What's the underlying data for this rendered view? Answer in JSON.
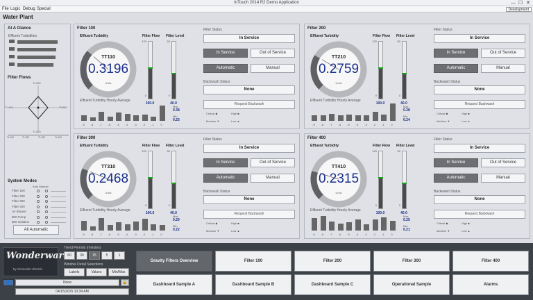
{
  "window": {
    "title": "InTouch 2014 R2 Demo Application",
    "minimize": "—",
    "maximize": "☐",
    "close": "✕"
  },
  "menu": {
    "items": [
      "File",
      "Logic",
      "Debug",
      "Special"
    ],
    "environment": "Development"
  },
  "app": {
    "title": "Water Plant"
  },
  "glance": {
    "title": "At A Glance",
    "turbidity_label": "Effluent Turbidities",
    "filters": [
      {
        "name": "100",
        "level": 0.62
      },
      {
        "name": "200",
        "level": 0.6
      },
      {
        "name": "300",
        "level": 0.58
      },
      {
        "name": "400",
        "level": 0.55
      }
    ],
    "flows_label": "Filter Flows",
    "flow_labels": {
      "top": "TI-100",
      "left": "TI-400",
      "right": "TI-200",
      "bottom": "TI-300"
    },
    "axis_labels": [
      "TI-100",
      "TI-200",
      "TI-300",
      "TI-400"
    ],
    "modes_title": "System Modes",
    "modes_header": "Auto Manual",
    "modes": [
      "Filter 100",
      "Filter 200",
      "Filter 300",
      "Filter 400",
      "Air Blower",
      "BW Pump",
      "BW Isolation"
    ],
    "all_auto": "All Automatic"
  },
  "filters": [
    {
      "title": "Filter 100",
      "tag": "TT110",
      "value": "0.3196",
      "gauge_level": 0.32,
      "flow": "100.0",
      "level": "40.0",
      "flow_fill": 0.55,
      "level_fill": 0.45,
      "hist": [
        0.32,
        0.18,
        0.5,
        0.22,
        0.45,
        0.4,
        0.3,
        0.35,
        0.25,
        0.85
      ],
      "hist_labels": [
        "-9",
        "-8",
        "-7",
        "-6",
        "-5",
        "-4",
        "-3",
        "-2",
        "-1",
        "0"
      ],
      "max": "0.38",
      "min": "0.25"
    },
    {
      "title": "Filter 200",
      "tag": "TT210",
      "value": "0.2759",
      "gauge_level": 0.28,
      "flow": "100.0",
      "level": "40.0",
      "flow_fill": 0.55,
      "level_fill": 0.45,
      "hist": [
        0.3,
        0.3,
        0.4,
        0.3,
        0.35,
        0.32,
        0.3,
        0.5,
        0.35,
        0.95
      ],
      "hist_labels": [
        "-9",
        "-8",
        "-7",
        "-6",
        "-5",
        "-4",
        "-3",
        "-2",
        "-1",
        "0"
      ],
      "max": "0.28",
      "min": "0.24"
    },
    {
      "title": "Filter 300",
      "tag": "TT310",
      "value": "0.2468",
      "gauge_level": 0.25,
      "flow": "100.0",
      "level": "40.0",
      "flow_fill": 0.55,
      "level_fill": 0.45,
      "hist": [
        0.55,
        0.25,
        0.7,
        0.3,
        0.45,
        0.35,
        0.5,
        0.65,
        0.35,
        0.3
      ],
      "hist_labels": [
        "-9",
        "-8",
        "-7",
        "-6",
        "-5",
        "-4",
        "-3",
        "-2",
        "-1",
        "0"
      ],
      "max": "0.29",
      "min": "0.22"
    },
    {
      "title": "Filter 400",
      "tag": "TT410",
      "value": "0.2315",
      "gauge_level": 0.23,
      "flow": "100.0",
      "level": "40.0",
      "flow_fill": 0.55,
      "level_fill": 0.45,
      "hist": [
        0.7,
        0.8,
        0.5,
        0.4,
        0.45,
        0.6,
        0.35,
        0.6,
        0.75,
        0.55
      ],
      "hist_labels": [
        "-9",
        "-8",
        "-7",
        "-6",
        "-5",
        "-4",
        "-3",
        "-2",
        "-1",
        "0"
      ],
      "max": "0.25",
      "min": "0.21"
    }
  ],
  "filter_labels": {
    "effluent_turbidity": "Effluent Turbidity",
    "filter_flow": "Filter Flow",
    "filter_level": "Filter Level",
    "filter_status": "Filter Status",
    "in_service_status": "In Service",
    "in_service": "In Service",
    "out_of_service": "Out of Service",
    "automatic": "Automatic",
    "manual": "Manual",
    "backwash_status": "Backwash Status",
    "backwash_value": "None",
    "request_backwash": "Request Backwash",
    "hourly_avg": "Effluent Turbidity Hourly Average",
    "units": "Units",
    "max_label": "Max",
    "min_label": "Min",
    "critical": "Critical ◆",
    "medium": "Medium ▼",
    "high": "High ■",
    "low": "Low ▲",
    "scale_top": "120",
    "scale_bot": "0",
    "level_top": "50"
  },
  "bottom": {
    "logo": "Wonderware",
    "logo_sub": "by Schneider Electric",
    "trend_label": "Trend Periods (minutes)",
    "trend_periods": [
      "60",
      "30",
      "15",
      "5",
      "1"
    ],
    "detail_label": "Window Detail Selections",
    "detail_buttons": [
      "Labels",
      "Values",
      "Min/Max"
    ],
    "user_field": "None",
    "datetime": "04/15/2015 10:34 AM",
    "nav_row1": [
      "Gravity Filters Overview",
      "Filter 100",
      "Filter 200",
      "Filter 300",
      "Filter 400"
    ],
    "nav_row2": [
      "Dashboard Sample A",
      "Dashboard Sample B",
      "Dashboard Sample C",
      "Operational Sample",
      "Alarms"
    ]
  }
}
